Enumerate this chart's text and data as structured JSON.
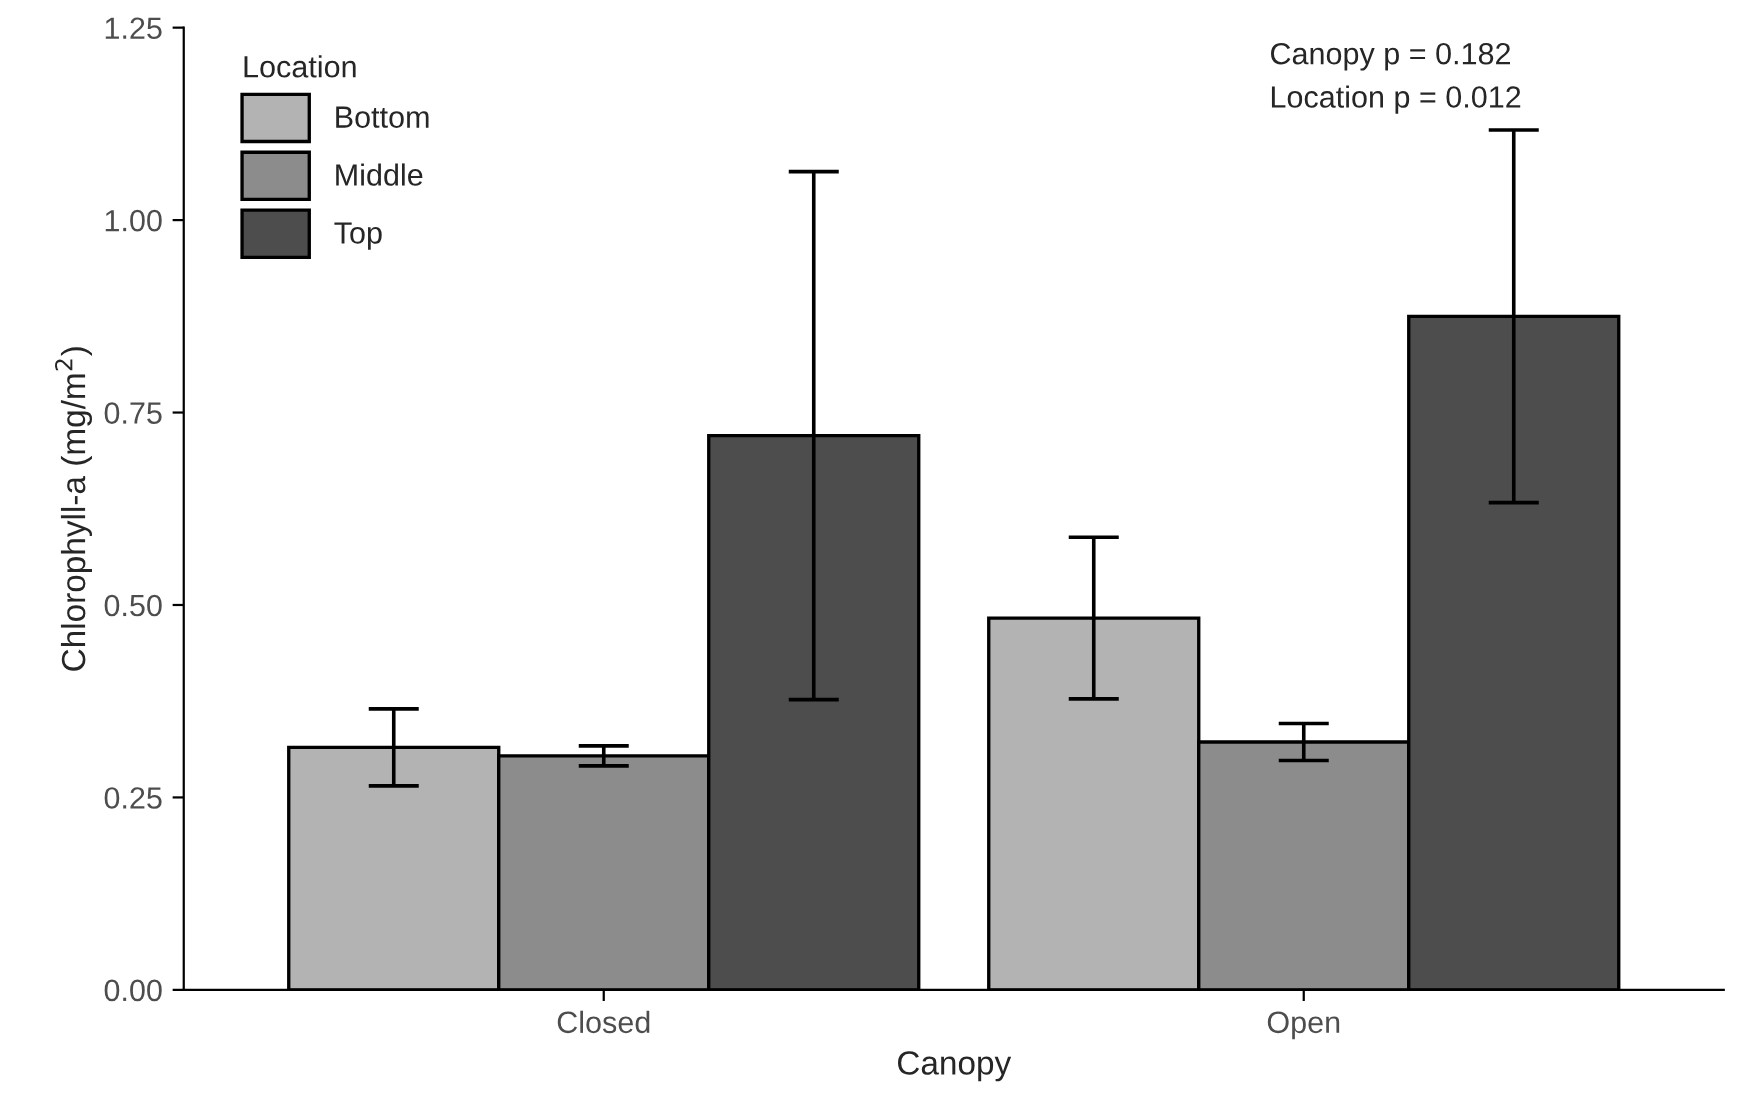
{
  "chart_data": {
    "type": "bar",
    "xlabel": "Canopy",
    "ylabel": "Chlorophyll-a (mg/m$^{2}$)",
    "legend_title": "Location",
    "categories": [
      "Closed",
      "Open"
    ],
    "series": [
      {
        "name": "Bottom",
        "color": "#b3b3b3",
        "values": [
          0.315,
          0.483
        ],
        "errors": [
          0.05,
          0.105
        ]
      },
      {
        "name": "Middle",
        "color": "#8c8c8c",
        "values": [
          0.304,
          0.322
        ],
        "errors": [
          0.013,
          0.024
        ]
      },
      {
        "name": "Top",
        "color": "#4d4d4d",
        "values": [
          0.72,
          0.875
        ],
        "errors": [
          0.343,
          0.242
        ]
      }
    ],
    "ylim": [
      0,
      1.25
    ],
    "yticks": [
      {
        "value": 0,
        "label": "0.00"
      },
      {
        "value": 0.25,
        "label": "0.25"
      },
      {
        "value": 0.5,
        "label": "0.50"
      },
      {
        "value": 0.75,
        "label": "0.75"
      },
      {
        "value": 1,
        "label": "1.00"
      },
      {
        "value": 1.25,
        "label": "1.25"
      }
    ],
    "annotations": [
      "Canopy p = 0.182",
      "Location p = 0.012"
    ],
    "grid": false,
    "legend": "top left"
  }
}
